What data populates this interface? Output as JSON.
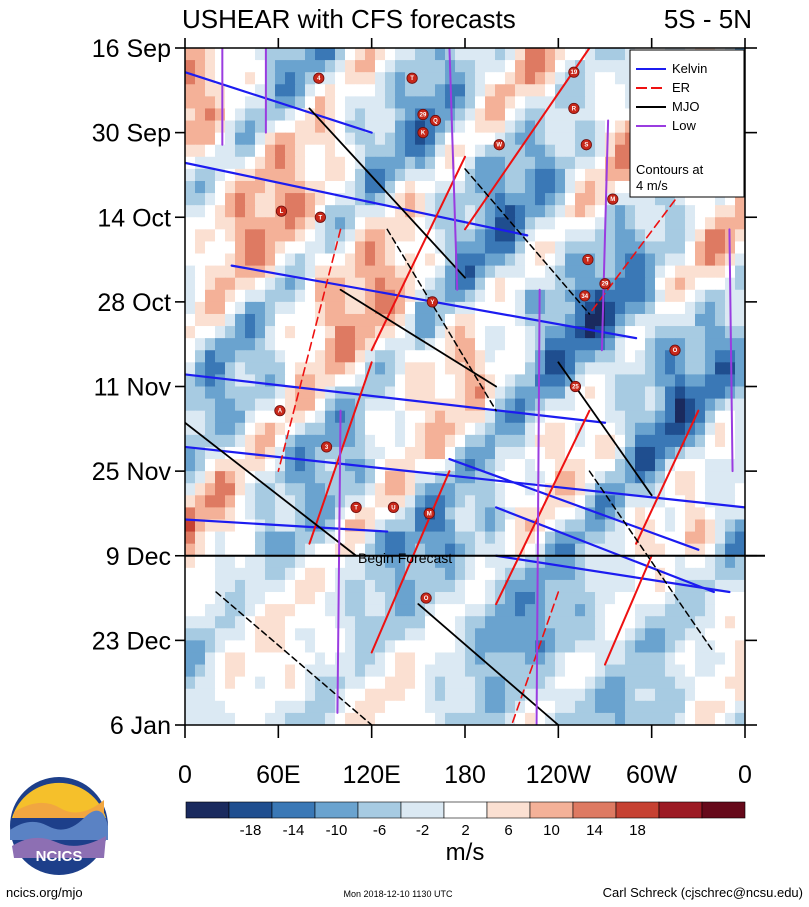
{
  "chart_data": {
    "type": "heatmap",
    "title": "USHEAR with CFS forecasts",
    "subtitle": "5S - 5N",
    "x_tick_labels": [
      "0",
      "60E",
      "120E",
      "180",
      "120W",
      "60W",
      "0"
    ],
    "x_range_deg_east": [
      0,
      360
    ],
    "y_tick_labels": [
      "16 Sep",
      "30 Sep",
      "14 Oct",
      "28 Oct",
      "11 Nov",
      "25 Nov",
      "9 Dec",
      "23 Dec",
      "6 Jan"
    ],
    "y_range_days": [
      0,
      112
    ],
    "forecast_start_day": 84,
    "forecast_label": "Begin Forecast",
    "colorbar": {
      "units": "m/s",
      "tick_labels": [
        "-18",
        "-14",
        "-10",
        "-6",
        "-2",
        "2",
        "6",
        "10",
        "14",
        "18"
      ],
      "colors": [
        "#1a2a5e",
        "#1f4e8f",
        "#3a78b6",
        "#6aa3cf",
        "#a7cbe2",
        "#dbe9f3",
        "#ffffff",
        "#fbe0d2",
        "#f4b198",
        "#de7a62",
        "#c64132",
        "#9c1a24",
        "#66091a"
      ]
    },
    "legend": {
      "items": [
        {
          "label": "Kelvin",
          "color": "#1c1cf0",
          "dash": "solid"
        },
        {
          "label": "ER",
          "color": "#ee1111",
          "dash": "long-dash"
        },
        {
          "label": "MJO",
          "color": "#000000",
          "dash": "solid"
        },
        {
          "label": "Low",
          "color": "#9a3ce0",
          "dash": "solid"
        }
      ],
      "note_line1": "Contours at",
      "note_line2": "4 m/s",
      "placement": "top-right"
    },
    "storms": [
      {
        "label": "4",
        "lon": 86,
        "day": 5
      },
      {
        "label": "T",
        "lon": 146,
        "day": 5
      },
      {
        "label": "19",
        "lon": 250,
        "day": 4
      },
      {
        "label": "R",
        "lon": 250,
        "day": 10
      },
      {
        "label": "29",
        "lon": 153,
        "day": 11
      },
      {
        "label": "K",
        "lon": 153,
        "day": 14
      },
      {
        "label": "Q",
        "lon": 161,
        "day": 12
      },
      {
        "label": "W",
        "lon": 202,
        "day": 16
      },
      {
        "label": "S",
        "lon": 258,
        "day": 16
      },
      {
        "label": "M",
        "lon": 275,
        "day": 25
      },
      {
        "label": "L",
        "lon": 62,
        "day": 27
      },
      {
        "label": "T",
        "lon": 87,
        "day": 28
      },
      {
        "label": "T",
        "lon": 259,
        "day": 35
      },
      {
        "label": "29",
        "lon": 270,
        "day": 39
      },
      {
        "label": "34",
        "lon": 257,
        "day": 41
      },
      {
        "label": "Y",
        "lon": 159,
        "day": 42
      },
      {
        "label": "O",
        "lon": 315,
        "day": 50
      },
      {
        "label": "25",
        "lon": 251,
        "day": 56
      },
      {
        "label": "A",
        "lon": 61,
        "day": 60
      },
      {
        "label": "3",
        "lon": 91,
        "day": 66
      },
      {
        "label": "T",
        "lon": 110,
        "day": 76
      },
      {
        "label": "U",
        "lon": 134,
        "day": 76
      },
      {
        "label": "M",
        "lon": 157,
        "day": 77
      },
      {
        "label": "O",
        "lon": 155,
        "day": 91
      }
    ]
  },
  "branding": {
    "logo_text": "NCICS",
    "url": "ncics.org/mjo",
    "timestamp": "Mon 2018-12-10 1130 UTC",
    "author": "Carl Schreck (cjschrec@ncsu.edu)"
  }
}
